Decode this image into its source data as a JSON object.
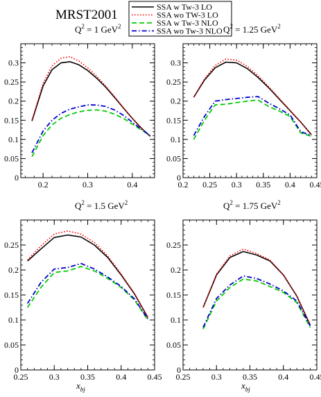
{
  "figure": {
    "title": "MRST2001",
    "xlabel_main": "x",
    "xlabel_sub": "bj"
  },
  "legend": [
    {
      "label": "SSA w Tw-3 LO",
      "color": "#000000",
      "dash": "solid"
    },
    {
      "label": "SSA wo TW-3 LO",
      "color": "#ff0000",
      "dash": "dotted"
    },
    {
      "label": "SSA w Tw-3 NLO",
      "color": "#00cc00",
      "dash": "dashed"
    },
    {
      "label": "SSA wo Tw-3 NLO",
      "color": "#0000cc",
      "dash": "dashdot"
    }
  ],
  "chart_data": [
    {
      "type": "line",
      "title": "Q² = 1 GeV²",
      "q2_value": "1",
      "xlim": [
        0.15,
        0.45
      ],
      "ylim": [
        0,
        0.35
      ],
      "xticks": [
        0.2,
        0.3,
        0.4
      ],
      "yticks": [
        0,
        0.05,
        0.1,
        0.15,
        0.2,
        0.25,
        0.3
      ],
      "series": [
        {
          "name": "SSA w Tw-3 LO",
          "x": [
            0.175,
            0.2,
            0.22,
            0.24,
            0.26,
            0.28,
            0.3,
            0.32,
            0.34,
            0.36,
            0.38,
            0.4,
            0.42,
            0.44
          ],
          "y": [
            0.148,
            0.24,
            0.282,
            0.3,
            0.303,
            0.295,
            0.28,
            0.26,
            0.237,
            0.21,
            0.182,
            0.155,
            0.13,
            0.108
          ]
        },
        {
          "name": "SSA wo TW-3 LO",
          "x": [
            0.175,
            0.2,
            0.22,
            0.24,
            0.26,
            0.28,
            0.3,
            0.32,
            0.34,
            0.36,
            0.38,
            0.4,
            0.42,
            0.44
          ],
          "y": [
            0.15,
            0.247,
            0.292,
            0.312,
            0.316,
            0.305,
            0.287,
            0.265,
            0.24,
            0.212,
            0.183,
            0.155,
            0.13,
            0.108
          ]
        },
        {
          "name": "SSA w Tw-3 NLO",
          "x": [
            0.175,
            0.2,
            0.22,
            0.24,
            0.26,
            0.28,
            0.3,
            0.32,
            0.34,
            0.36,
            0.38,
            0.4,
            0.42,
            0.44
          ],
          "y": [
            0.055,
            0.11,
            0.138,
            0.155,
            0.165,
            0.172,
            0.176,
            0.177,
            0.174,
            0.166,
            0.155,
            0.14,
            0.125,
            0.11
          ]
        },
        {
          "name": "SSA wo Tw-3 NLO",
          "x": [
            0.175,
            0.2,
            0.22,
            0.24,
            0.26,
            0.28,
            0.3,
            0.32,
            0.34,
            0.36,
            0.38,
            0.4,
            0.42,
            0.44
          ],
          "y": [
            0.065,
            0.122,
            0.15,
            0.168,
            0.179,
            0.185,
            0.19,
            0.19,
            0.186,
            0.177,
            0.163,
            0.145,
            0.127,
            0.11
          ]
        }
      ]
    },
    {
      "type": "line",
      "title": "Q² = 1.25 GeV²",
      "q2_value": "1.25",
      "xlim": [
        0.2,
        0.45
      ],
      "ylim": [
        0,
        0.35
      ],
      "xticks": [
        0.2,
        0.25,
        0.3,
        0.35,
        0.4,
        0.45
      ],
      "yticks": [
        0,
        0.05,
        0.1,
        0.15,
        0.2,
        0.25,
        0.3
      ],
      "series": [
        {
          "name": "SSA w Tw-3 LO",
          "x": [
            0.22,
            0.24,
            0.26,
            0.28,
            0.3,
            0.32,
            0.34,
            0.36,
            0.38,
            0.4,
            0.42,
            0.44
          ],
          "y": [
            0.21,
            0.255,
            0.287,
            0.302,
            0.3,
            0.285,
            0.262,
            0.235,
            0.205,
            0.175,
            0.145,
            0.112
          ]
        },
        {
          "name": "SSA wo TW-3 LO",
          "x": [
            0.22,
            0.24,
            0.26,
            0.28,
            0.3,
            0.32,
            0.34,
            0.36,
            0.38,
            0.4,
            0.42,
            0.44
          ],
          "y": [
            0.21,
            0.258,
            0.293,
            0.31,
            0.307,
            0.291,
            0.267,
            0.238,
            0.207,
            0.176,
            0.145,
            0.112
          ]
        },
        {
          "name": "SSA w Tw-3 NLO",
          "x": [
            0.22,
            0.24,
            0.26,
            0.28,
            0.3,
            0.32,
            0.34,
            0.36,
            0.38,
            0.4,
            0.42,
            0.44
          ],
          "y": [
            0.1,
            0.15,
            0.19,
            0.192,
            0.196,
            0.2,
            0.203,
            0.186,
            0.174,
            0.16,
            0.117,
            0.108
          ]
        },
        {
          "name": "SSA wo Tw-3 NLO",
          "x": [
            0.22,
            0.24,
            0.26,
            0.28,
            0.3,
            0.32,
            0.34,
            0.36,
            0.38,
            0.4,
            0.42,
            0.44
          ],
          "y": [
            0.11,
            0.16,
            0.2,
            0.204,
            0.207,
            0.21,
            0.212,
            0.195,
            0.18,
            0.164,
            0.12,
            0.11
          ]
        }
      ]
    },
    {
      "type": "line",
      "title": "Q² = 1.5 GeV²",
      "q2_value": "1.5",
      "xlim": [
        0.25,
        0.45
      ],
      "ylim": [
        0,
        0.3
      ],
      "xticks": [
        0.25,
        0.3,
        0.35,
        0.4,
        0.45
      ],
      "yticks": [
        0,
        0.05,
        0.1,
        0.15,
        0.2,
        0.25
      ],
      "series": [
        {
          "name": "SSA w Tw-3 LO",
          "x": [
            0.26,
            0.28,
            0.3,
            0.32,
            0.34,
            0.36,
            0.38,
            0.4,
            0.42,
            0.44
          ],
          "y": [
            0.218,
            0.242,
            0.265,
            0.27,
            0.266,
            0.25,
            0.225,
            0.19,
            0.152,
            0.105
          ]
        },
        {
          "name": "SSA wo TW-3 LO",
          "x": [
            0.26,
            0.28,
            0.3,
            0.32,
            0.34,
            0.36,
            0.38,
            0.4,
            0.42,
            0.44
          ],
          "y": [
            0.22,
            0.248,
            0.272,
            0.278,
            0.272,
            0.255,
            0.228,
            0.192,
            0.153,
            0.105
          ]
        },
        {
          "name": "SSA w Tw-3 NLO",
          "x": [
            0.26,
            0.28,
            0.3,
            0.32,
            0.34,
            0.36,
            0.38,
            0.4,
            0.42,
            0.44
          ],
          "y": [
            0.125,
            0.165,
            0.195,
            0.198,
            0.207,
            0.198,
            0.183,
            0.165,
            0.14,
            0.1
          ]
        },
        {
          "name": "SSA wo Tw-3 NLO",
          "x": [
            0.26,
            0.28,
            0.3,
            0.32,
            0.34,
            0.36,
            0.38,
            0.4,
            0.42,
            0.44
          ],
          "y": [
            0.133,
            0.175,
            0.202,
            0.205,
            0.213,
            0.202,
            0.186,
            0.167,
            0.142,
            0.102
          ]
        }
      ]
    },
    {
      "type": "line",
      "title": "Q² = 1.75 GeV²",
      "q2_value": "1.75",
      "xlim": [
        0.25,
        0.45
      ],
      "ylim": [
        0,
        0.3
      ],
      "xticks": [
        0.25,
        0.3,
        0.35,
        0.4,
        0.45
      ],
      "yticks": [
        0,
        0.05,
        0.1,
        0.15,
        0.2,
        0.25
      ],
      "series": [
        {
          "name": "SSA w Tw-3 LO",
          "x": [
            0.28,
            0.3,
            0.32,
            0.34,
            0.36,
            0.38,
            0.4,
            0.42,
            0.44
          ],
          "y": [
            0.125,
            0.19,
            0.225,
            0.237,
            0.23,
            0.218,
            0.19,
            0.148,
            0.09
          ]
        },
        {
          "name": "SSA wo TW-3 LO",
          "x": [
            0.28,
            0.3,
            0.32,
            0.34,
            0.36,
            0.38,
            0.4,
            0.42,
            0.44
          ],
          "y": [
            0.125,
            0.192,
            0.228,
            0.242,
            0.233,
            0.22,
            0.19,
            0.148,
            0.09
          ]
        },
        {
          "name": "SSA w Tw-3 NLO",
          "x": [
            0.28,
            0.3,
            0.32,
            0.34,
            0.36,
            0.38,
            0.4,
            0.42,
            0.44
          ],
          "y": [
            0.082,
            0.138,
            0.165,
            0.182,
            0.178,
            0.167,
            0.155,
            0.135,
            0.085
          ]
        },
        {
          "name": "SSA wo Tw-3 NLO",
          "x": [
            0.28,
            0.3,
            0.32,
            0.34,
            0.36,
            0.38,
            0.4,
            0.42,
            0.44
          ],
          "y": [
            0.085,
            0.143,
            0.17,
            0.188,
            0.183,
            0.172,
            0.158,
            0.138,
            0.088
          ]
        }
      ]
    }
  ]
}
